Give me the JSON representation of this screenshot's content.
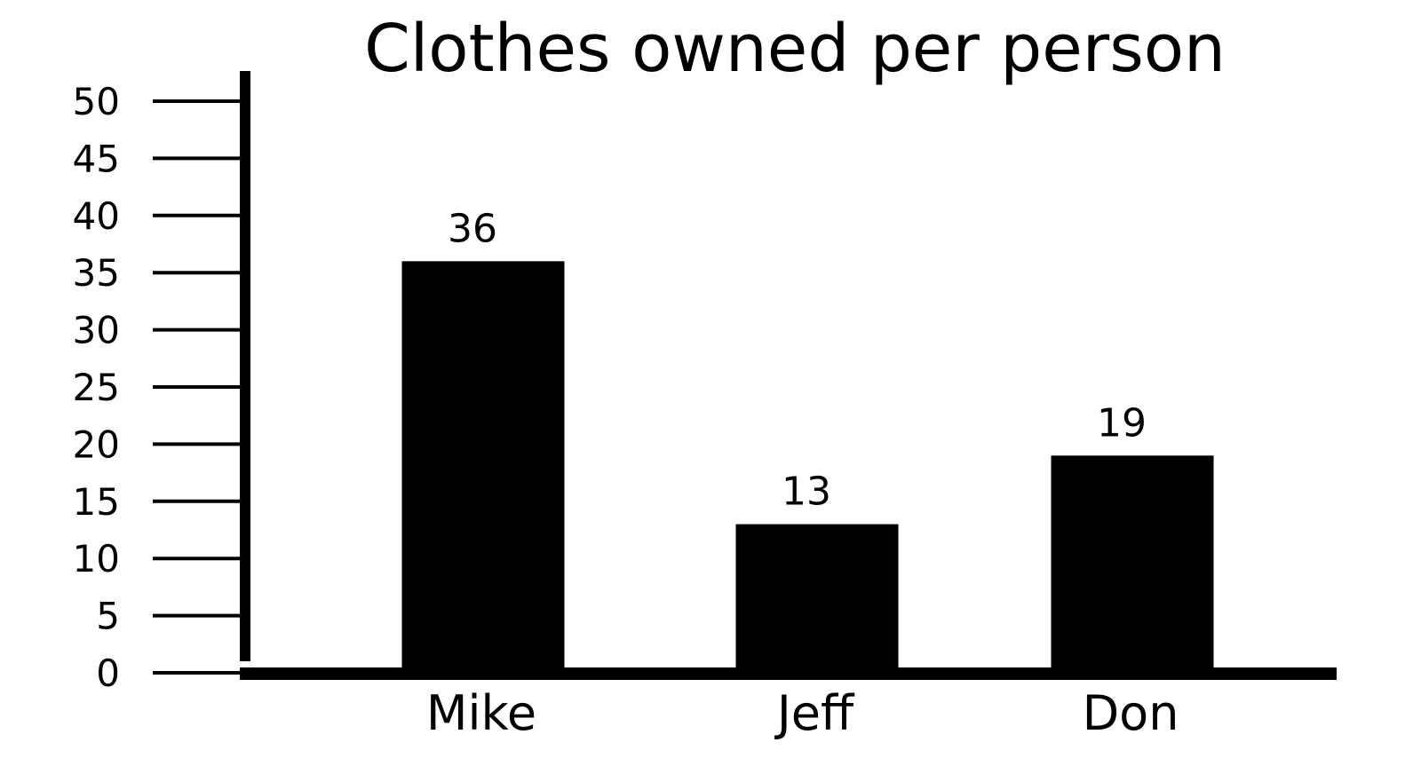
{
  "chart_data": {
    "type": "bar",
    "title": "Clothes owned per person",
    "categories": [
      "Mike",
      "Jeff",
      "Don"
    ],
    "values": [
      36,
      13,
      19
    ],
    "data_labels": [
      "36",
      "13",
      "19"
    ],
    "xlabel": "",
    "ylabel": "",
    "ylim": [
      0,
      50
    ],
    "yticks": [
      0,
      5,
      10,
      15,
      20,
      25,
      30,
      35,
      40,
      45,
      50
    ],
    "grid": false,
    "legend": "none",
    "bar_color": "#000000",
    "axis_color": "#000000"
  }
}
